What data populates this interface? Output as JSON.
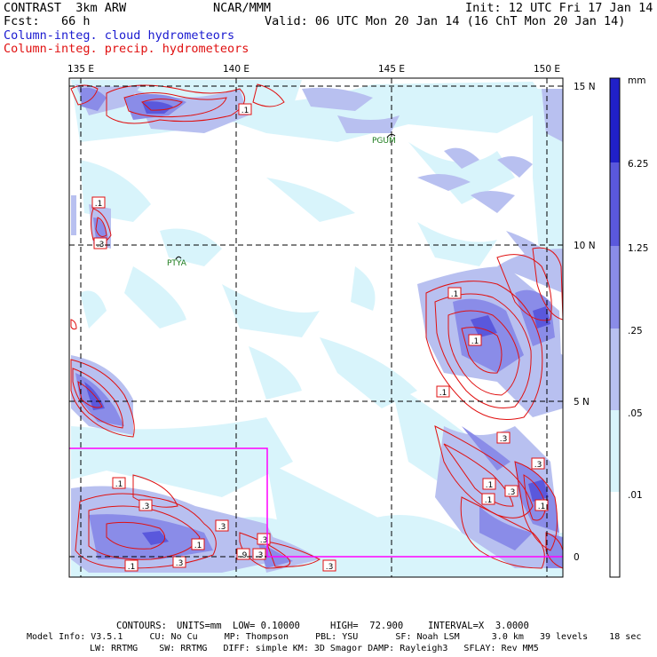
{
  "header": {
    "model": "CONTRAST  3km ARW",
    "forecast": "Fcst:   66 h",
    "center": "NCAR/MMM",
    "init": "Init: 12 UTC Fri 17 Jan 14",
    "valid": "Valid: 06 UTC Mon 20 Jan 14 (16 ChT Mon 20 Jan 14)",
    "field_cloud": "Column-integ. cloud hydrometeors",
    "field_precip": "Column-integ. precip. hydrometeors"
  },
  "map": {
    "lon_labels": [
      "135 E",
      "140 E",
      "145 E",
      "150 E"
    ],
    "lat_labels": [
      "15 N",
      "10 N",
      "5 N",
      "0"
    ],
    "places": [
      "PGUM",
      "PTYA"
    ],
    "contour_labels": [
      ".1",
      ".1",
      ".3",
      ".1",
      ".1",
      ".1",
      ".3",
      ".3",
      ".1",
      ".1",
      ".3",
      ".1",
      ".3",
      ".1",
      ".3",
      ".3",
      ".1",
      ".3",
      ".3",
      ".9",
      ".3",
      ".1"
    ]
  },
  "colorbar": {
    "unit": "mm",
    "levels": [
      ".01",
      ".05",
      ".25",
      "1.25",
      "6.25"
    ],
    "colors": [
      "#ffffff",
      "#d8f4fb",
      "#b8c0f0",
      "#8a8ce8",
      "#5a58dc",
      "#2020c8"
    ]
  },
  "footer": {
    "contours": {
      "label": "CONTOURS:",
      "units": "UNITS=mm",
      "low": "LOW= 0.10000",
      "high": "HIGH=  72.900",
      "interval": "INTERVAL=X  3.0000"
    },
    "model_info_1": "Model Info: V3.5.1     CU: No Cu     MP: Thompson     PBL: YSU       SF: Noah LSM      3.0 km   39 levels    18 sec",
    "model_info_2": "LW: RRTMG    SW: RRTMG   DIFF: simple KM: 3D Smagor DAMP: Rayleigh3   SFLAY: Rev MM5"
  }
}
